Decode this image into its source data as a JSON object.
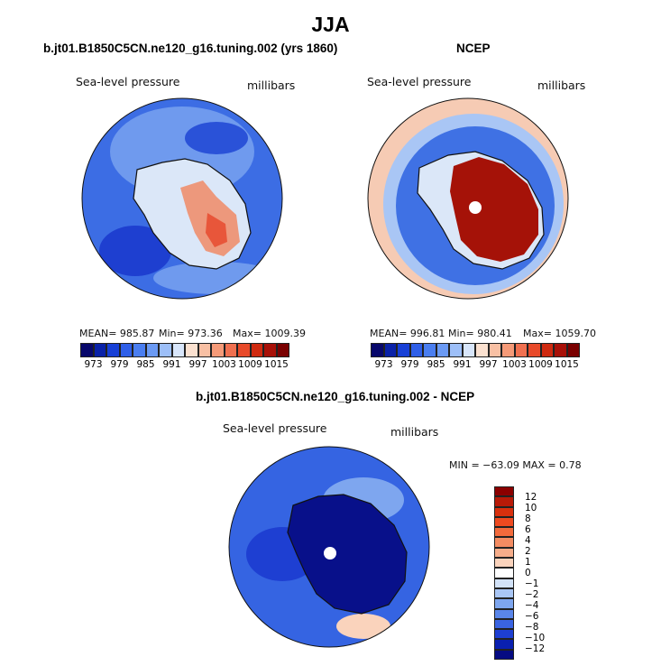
{
  "figure": {
    "title": "JJA",
    "left_title": "b.jt01.B1850C5CN.ne120_g16.tuning.002 (yrs 1860)",
    "right_title": "NCEP",
    "bottom_title": "b.jt01.B1850C5CN.ne120_g16.tuning.002 - NCEP"
  },
  "panels": {
    "left": {
      "var_label": "Sea-level pressure",
      "units_label": "millibars",
      "mean_text": "MEAN= 985.87",
      "min_text": "Min= 973.36",
      "max_text": "Max= 1009.39"
    },
    "right": {
      "var_label": "Sea-level pressure",
      "units_label": "millibars",
      "mean_text": "MEAN= 996.81",
      "min_text": "Min= 980.41",
      "max_text": "Max= 1059.70"
    },
    "bottom": {
      "var_label": "Sea-level pressure",
      "units_label": "millibars",
      "minmax_text": "MIN = −63.09 MAX =   0.78"
    }
  },
  "colorbar_top": {
    "colors": [
      "#08086b",
      "#0a22a8",
      "#1840d6",
      "#2f5fe8",
      "#4a7ef0",
      "#6b9af4",
      "#9dbff8",
      "#d8e6fb",
      "#fbe1d0",
      "#f8c0a4",
      "#f59a78",
      "#f07050",
      "#e84a2a",
      "#cf2a10",
      "#a81008",
      "#7a0000"
    ],
    "tick_labels": [
      "973",
      "979",
      "985",
      "991",
      "997",
      "1003",
      "1009",
      "1015"
    ]
  },
  "colorbar_diff": {
    "colors_top_to_bottom": [
      "#8b0000",
      "#b81a08",
      "#d8300e",
      "#ee4a20",
      "#f26a3c",
      "#f48c62",
      "#f6ad8a",
      "#fad3bc",
      "#ffffff",
      "#d2e2f8",
      "#a9c6f5",
      "#7ea6ef",
      "#5a86ea",
      "#3a64e2",
      "#1e3fd2",
      "#0a20b0",
      "#060b82"
    ],
    "tick_labels": [
      "12",
      "10",
      "8",
      "6",
      "4",
      "2",
      "1",
      "0",
      "−1",
      "−2",
      "−4",
      "−6",
      "−8",
      "−10",
      "−12"
    ]
  },
  "map_colors": {
    "left_ocean": "#3c6de4",
    "left_ocean_dark": "#1e3fd0",
    "left_ocean_light": "#6f9aee",
    "left_land": "#dbe7f8",
    "left_land_red": "#f08a66",
    "right_outer": "#f6cbb4",
    "right_ocean": "#3f71e4",
    "right_land": "#a51208",
    "diff_ocean": "#3564e2",
    "diff_land": "#08108a"
  }
}
